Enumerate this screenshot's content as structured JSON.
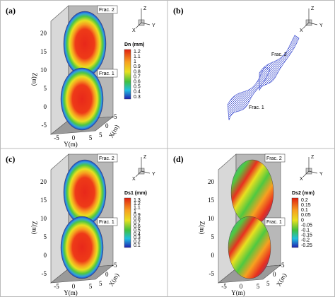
{
  "panels": [
    {
      "label": "(a)",
      "frac_labels": [
        "Frac. 2",
        "Frac. 1"
      ],
      "style": "radial",
      "colorbar": {
        "title": "Dn (mm)",
        "ticks": [
          "1.2",
          "1.1",
          "1",
          "0.9",
          "0.8",
          "0.7",
          "0.6",
          "0.5",
          "0.4",
          "0.3"
        ]
      },
      "axes": {
        "z_label": "Z(m)",
        "y_label": "Y(m)",
        "x_label": "X(m)",
        "z_ticks": [
          "20",
          "15",
          "10",
          "5",
          "0",
          "-5"
        ],
        "y_ticks": [
          "-5",
          "0",
          "5"
        ],
        "x_ticks": [
          "5",
          "0",
          "-5"
        ]
      },
      "triad": [
        "Z",
        "Y",
        "X"
      ]
    },
    {
      "label": "(b)",
      "frac_labels": [
        "Frac. 2",
        "Frac. 1"
      ],
      "style": "mesh",
      "triad": [
        "Z",
        "Y",
        "X"
      ]
    },
    {
      "label": "(c)",
      "frac_labels": [
        "Frac. 2",
        "Frac. 1"
      ],
      "style": "radial",
      "colorbar": {
        "title": "Ds1 (mm)",
        "ticks": [
          "1.3",
          "1.2",
          "1.1",
          "1",
          "0.9",
          "0.8",
          "0.7",
          "0.6",
          "0.5",
          "0.4",
          "0.3",
          "0.2",
          "0.1"
        ]
      },
      "axes": {
        "z_label": "Z(m)",
        "y_label": "Y(m)",
        "x_label": "X(m)",
        "z_ticks": [
          "20",
          "15",
          "10",
          "5",
          "0",
          "-5"
        ],
        "y_ticks": [
          "-5",
          "0",
          "5"
        ],
        "x_ticks": [
          "5",
          "0",
          "-5"
        ]
      },
      "triad": [
        "Z",
        "Y",
        "X"
      ]
    },
    {
      "label": "(d)",
      "frac_labels": [
        "Frac. 2",
        "Frac. 1"
      ],
      "style": "stripe",
      "colorbar": {
        "title": "Ds2 (mm)",
        "ticks": [
          "0.2",
          "0.15",
          "0.1",
          "0.05",
          "0",
          "-0.05",
          "-0.1",
          "-0.15",
          "-0.2",
          "-0.25"
        ]
      },
      "axes": {
        "z_label": "Z(m)",
        "y_label": "Y(m)",
        "x_label": "X(m)",
        "z_ticks": [
          "20",
          "15",
          "10",
          "5",
          "0",
          "-5"
        ],
        "y_ticks": [
          "-5",
          "0",
          "5"
        ],
        "x_ticks": [
          "5",
          "0",
          "-5"
        ]
      },
      "triad": [
        "Z",
        "Y",
        "X"
      ]
    }
  ]
}
